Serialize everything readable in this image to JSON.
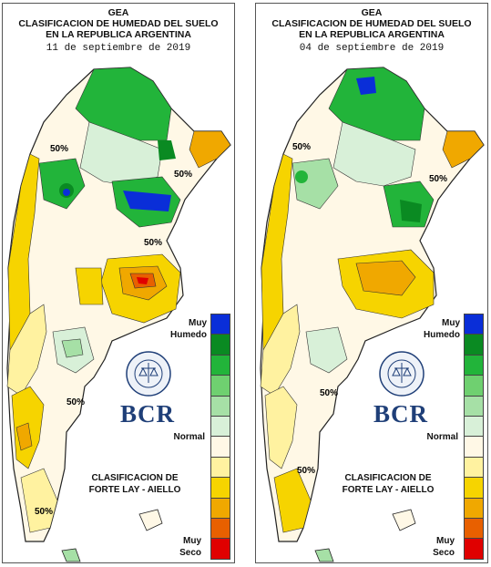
{
  "panels": [
    {
      "title_lines": [
        "GEA",
        "CLASIFICACION DE HUMEDAD DEL SUELO",
        "EN LA REPUBLICA ARGENTINA"
      ],
      "date": "11 de septiembre de 2019",
      "contour_labels": [
        "50%",
        "50%",
        "50%",
        "50%",
        "50%"
      ]
    },
    {
      "title_lines": [
        "GEA",
        "CLASIFICACION DE HUMEDAD DEL SUELO",
        "EN LA REPUBLICA ARGENTINA"
      ],
      "date": "04 de septiembre de 2019",
      "contour_labels": [
        "50%",
        "50%",
        "50%",
        "50%"
      ]
    }
  ],
  "legend": {
    "top_label": [
      "Muy",
      "Humedo"
    ],
    "middle_label": "Normal",
    "bottom_label": [
      "Muy",
      "Seco"
    ],
    "classification": [
      "CLASIFICACION DE",
      "FORTE LAY - AIELLO"
    ],
    "colors": [
      "#0a2ed8",
      "#0a8a22",
      "#22b43a",
      "#6fd070",
      "#a6e0a6",
      "#d8f0d8",
      "#fff8e6",
      "#fff2a0",
      "#f6d400",
      "#f0a800",
      "#e86000",
      "#e00000"
    ]
  },
  "logo": {
    "text": "BCR",
    "seal_text": "BOLSA DE COMERCIO DE ROSARIO"
  }
}
